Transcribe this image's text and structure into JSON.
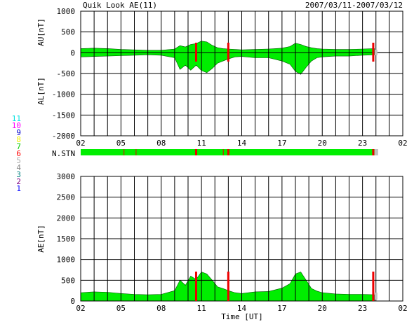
{
  "header": {
    "title": "Quik Look AE(11)",
    "date_range": "2007/03/11-2007/03/12"
  },
  "station_legend": [
    {
      "label": "11",
      "color": "#00e0e0"
    },
    {
      "label": "10",
      "color": "#ff00ff"
    },
    {
      "label": "9",
      "color": "#0000cc"
    },
    {
      "label": "8",
      "color": "#f0f000"
    },
    {
      "label": "7",
      "color": "#00cc00"
    },
    {
      "label": "6",
      "color": "#ff0000"
    },
    {
      "label": "5",
      "color": "#aaaaaa"
    },
    {
      "label": "4",
      "color": "#888888"
    },
    {
      "label": "3",
      "color": "#008080"
    },
    {
      "label": "2",
      "color": "#800080"
    },
    {
      "label": "1",
      "color": "#0000ff"
    }
  ],
  "chart_data": [
    {
      "type": "area",
      "panel": "AU/AL",
      "ylabel_top": "AU[nT]",
      "ylabel_bottom": "AL[nT]",
      "ylim": [
        -2000,
        1000
      ],
      "yticks": [
        1000,
        500,
        0,
        -500,
        -1000,
        -1500,
        -2000
      ],
      "xlim": [
        2,
        26
      ],
      "xticks": [
        "02",
        "05",
        "08",
        "11",
        "14",
        "17",
        "20",
        "23",
        "02"
      ],
      "grid": true,
      "fill_color": "#00ee00",
      "data_end_hour": 23.9,
      "x": [
        2.0,
        3.0,
        4.0,
        5.0,
        6.0,
        7.0,
        8.0,
        9.0,
        9.4,
        9.8,
        10.2,
        10.6,
        11.0,
        11.4,
        11.8,
        12.2,
        12.6,
        13.0,
        13.5,
        14.0,
        15.0,
        16.0,
        17.0,
        17.6,
        18.0,
        18.4,
        18.8,
        19.2,
        19.6,
        20.0,
        21.0,
        22.0,
        23.0,
        23.9
      ],
      "series": [
        {
          "name": "AU",
          "values": [
            100,
            110,
            100,
            80,
            70,
            60,
            60,
            90,
            170,
            140,
            200,
            220,
            280,
            260,
            180,
            120,
            100,
            90,
            80,
            70,
            80,
            90,
            110,
            150,
            230,
            200,
            150,
            120,
            100,
            90,
            80,
            80,
            90,
            100
          ]
        },
        {
          "name": "AL",
          "values": [
            -100,
            -90,
            -80,
            -70,
            -60,
            -50,
            -60,
            -120,
            -400,
            -300,
            -420,
            -300,
            -430,
            -480,
            -380,
            -250,
            -200,
            -150,
            -100,
            -90,
            -120,
            -120,
            -200,
            -280,
            -450,
            -520,
            -350,
            -200,
            -120,
            -100,
            -80,
            -80,
            -60,
            -50
          ]
        }
      ]
    },
    {
      "type": "area",
      "panel": "AE",
      "ylabel": "AE[nT]",
      "xlabel": "Time [UT]",
      "ylim": [
        0,
        3000
      ],
      "yticks": [
        3000,
        2500,
        2000,
        1500,
        1000,
        500,
        0
      ],
      "xlim": [
        2,
        26
      ],
      "xticks": [
        "02",
        "05",
        "08",
        "11",
        "14",
        "17",
        "20",
        "23",
        "02"
      ],
      "grid": true,
      "fill_color": "#00ee00",
      "data_end_hour": 23.9,
      "x": [
        2.0,
        3.0,
        4.0,
        5.0,
        6.0,
        7.0,
        8.0,
        9.0,
        9.4,
        9.8,
        10.2,
        10.6,
        11.0,
        11.4,
        11.8,
        12.2,
        12.6,
        13.0,
        13.5,
        14.0,
        15.0,
        16.0,
        17.0,
        17.6,
        18.0,
        18.4,
        18.8,
        19.2,
        19.6,
        20.0,
        21.0,
        22.0,
        23.0,
        23.9
      ],
      "series": [
        {
          "name": "AE",
          "values": [
            200,
            220,
            210,
            180,
            160,
            150,
            160,
            250,
            500,
            380,
            600,
            520,
            700,
            650,
            500,
            340,
            300,
            250,
            200,
            180,
            220,
            230,
            310,
            420,
            650,
            700,
            500,
            300,
            240,
            200,
            170,
            160,
            160,
            150
          ]
        }
      ]
    }
  ],
  "n_station": {
    "label": "N.STN",
    "fill_color": "#00ee00",
    "mark_color": "#ee0000",
    "gray_color": "#c0c0c0",
    "major_marks": [
      10.6,
      13.0,
      23.8
    ],
    "minor_marks": [
      5.2,
      6.1,
      12.6
    ],
    "data_end_hour": 23.9
  }
}
